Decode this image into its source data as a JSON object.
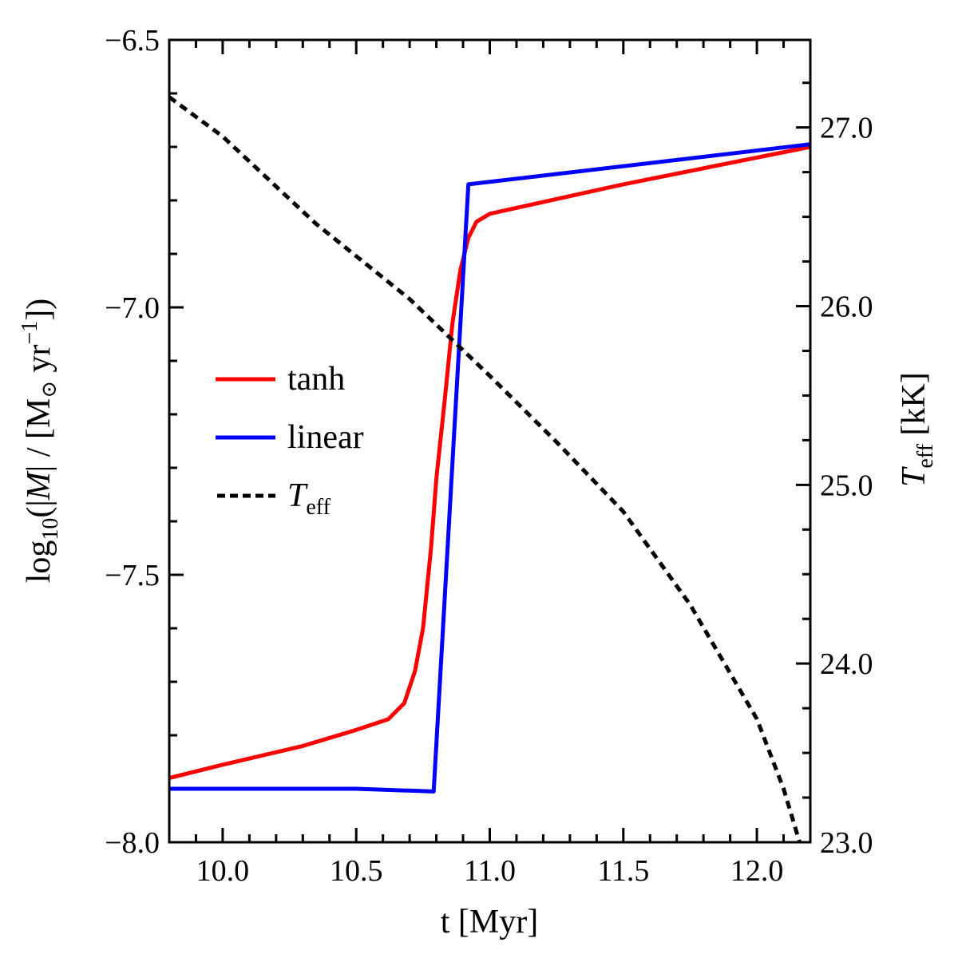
{
  "chart_data": {
    "type": "line",
    "xlabel": "t [Myr]",
    "ylabel": {
      "prefix": "log",
      "sub": "10",
      "open": "(|",
      "mdot": "M",
      "mid": "| / [M",
      "sun": "⊙",
      "unit": " yr",
      "exp": "−1",
      "close": "])"
    },
    "y2label": {
      "main": "T",
      "sub": "eff",
      "unit": " [kK]"
    },
    "xlim": [
      9.8,
      12.2
    ],
    "ylim": [
      -8.0,
      -6.5
    ],
    "y2lim": [
      23.0,
      27.49
    ],
    "xticks": [
      "10.0",
      "10.5",
      "11.0",
      "11.5",
      "12.0"
    ],
    "yticks": [
      "−8.0",
      "−7.5",
      "−7.0",
      "−6.5"
    ],
    "y2ticks": [
      "23.0",
      "24.0",
      "25.0",
      "26.0",
      "27.0"
    ],
    "grid": false,
    "legend_position": "center-left",
    "series": [
      {
        "name": "tanh",
        "color": "#ff0000",
        "style": "solid",
        "axis": "left",
        "x": [
          9.8,
          10.0,
          10.3,
          10.5,
          10.62,
          10.68,
          10.72,
          10.75,
          10.78,
          10.8,
          10.83,
          10.86,
          10.89,
          10.92,
          10.95,
          11.0,
          11.5,
          12.2
        ],
        "y": [
          -7.88,
          -7.855,
          -7.82,
          -7.79,
          -7.77,
          -7.74,
          -7.68,
          -7.6,
          -7.45,
          -7.32,
          -7.18,
          -7.03,
          -6.93,
          -6.87,
          -6.84,
          -6.825,
          -6.77,
          -6.7
        ]
      },
      {
        "name": "linear",
        "color": "#0000ff",
        "style": "solid",
        "axis": "left",
        "x": [
          9.8,
          10.5,
          10.79,
          10.92,
          12.2
        ],
        "y": [
          -7.9,
          -7.9,
          -7.905,
          -6.77,
          -6.695
        ]
      },
      {
        "name": "T",
        "name_sub": "eff",
        "color": "#000000",
        "style": "dashed",
        "axis": "right",
        "x": [
          9.8,
          10.0,
          10.35,
          10.7,
          11.0,
          11.25,
          11.5,
          11.75,
          12.0,
          12.1,
          12.16
        ],
        "y": [
          27.17,
          26.95,
          26.46,
          26.04,
          25.61,
          25.24,
          24.85,
          24.33,
          23.69,
          23.3,
          23.0
        ]
      }
    ]
  }
}
